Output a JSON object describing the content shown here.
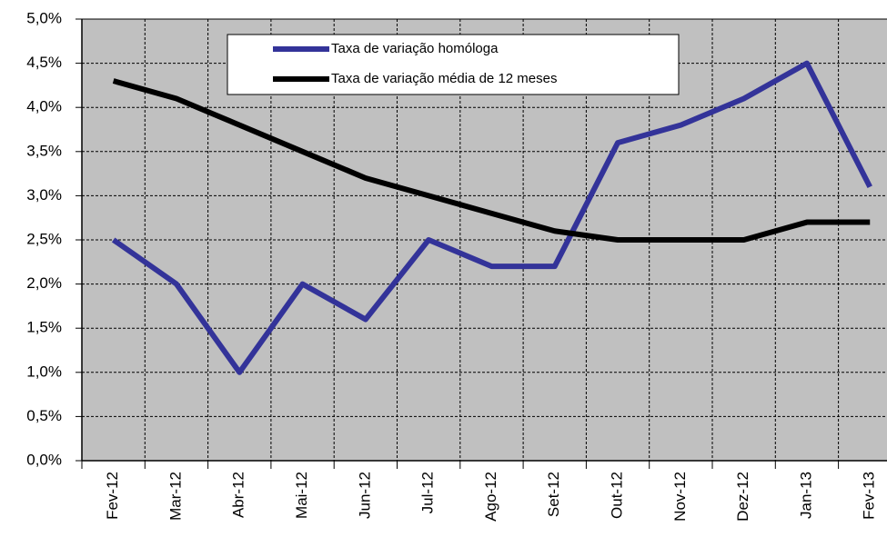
{
  "chart_data": {
    "type": "line",
    "categories": [
      "Fev-12",
      "Mar-12",
      "Abr-12",
      "Mai-12",
      "Jun-12",
      "Jul-12",
      "Ago-12",
      "Set-12",
      "Out-12",
      "Nov-12",
      "Dez-12",
      "Jan-13",
      "Fev-13"
    ],
    "series": [
      {
        "name": "Taxa de variação homóloga",
        "color": "#333399",
        "values": [
          2.5,
          2.0,
          1.0,
          2.0,
          1.6,
          2.5,
          2.2,
          2.2,
          3.6,
          3.8,
          4.1,
          4.5,
          3.1
        ]
      },
      {
        "name": "Taxa de variação média de 12 meses",
        "color": "#000000",
        "values": [
          4.3,
          4.1,
          3.8,
          3.5,
          3.2,
          3.0,
          2.8,
          2.6,
          2.5,
          2.5,
          2.5,
          2.7,
          2.7
        ]
      }
    ],
    "ylim": [
      0,
      5
    ],
    "yticks": [
      {
        "value": 0,
        "label": "0,0%"
      },
      {
        "value": 0.5,
        "label": "0,5%"
      },
      {
        "value": 1,
        "label": "1,0%"
      },
      {
        "value": 1.5,
        "label": "1,5%"
      },
      {
        "value": 2,
        "label": "2,0%"
      },
      {
        "value": 2.5,
        "label": "2,5%"
      },
      {
        "value": 3,
        "label": "3,0%"
      },
      {
        "value": 3.5,
        "label": "3,5%"
      },
      {
        "value": 4,
        "label": "4,0%"
      },
      {
        "value": 4.5,
        "label": "4,5%"
      },
      {
        "value": 5,
        "label": "5,0%"
      }
    ],
    "grid": true,
    "background": "#c0c0c0"
  }
}
